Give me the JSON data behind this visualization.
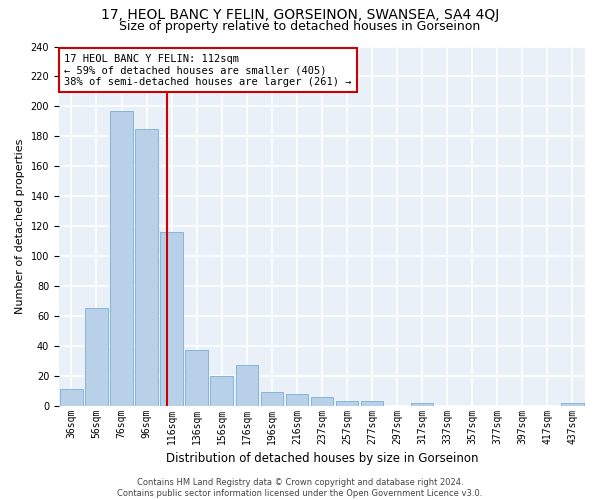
{
  "title": "17, HEOL BANC Y FELIN, GORSEINON, SWANSEA, SA4 4QJ",
  "subtitle": "Size of property relative to detached houses in Gorseinon",
  "xlabel": "Distribution of detached houses by size in Gorseinon",
  "ylabel": "Number of detached properties",
  "bar_color": "#b8d0e8",
  "bar_edge_color": "#7aaed4",
  "background_color": "#eaf0f8",
  "grid_color": "#ffffff",
  "categories": [
    "36sqm",
    "56sqm",
    "76sqm",
    "96sqm",
    "116sqm",
    "136sqm",
    "156sqm",
    "176sqm",
    "196sqm",
    "216sqm",
    "237sqm",
    "257sqm",
    "277sqm",
    "297sqm",
    "317sqm",
    "337sqm",
    "357sqm",
    "377sqm",
    "397sqm",
    "417sqm",
    "437sqm"
  ],
  "values": [
    11,
    65,
    197,
    185,
    116,
    37,
    20,
    27,
    9,
    8,
    6,
    3,
    3,
    0,
    2,
    0,
    0,
    0,
    0,
    0,
    2
  ],
  "property_line_x": 3.82,
  "property_line_color": "#cc0000",
  "annotation_line1": "17 HEOL BANC Y FELIN: 112sqm",
  "annotation_line2": "← 59% of detached houses are smaller (405)",
  "annotation_line3": "38% of semi-detached houses are larger (261) →",
  "annotation_box_color": "#ffffff",
  "annotation_box_edge_color": "#cc0000",
  "ylim": [
    0,
    240
  ],
  "yticks": [
    0,
    20,
    40,
    60,
    80,
    100,
    120,
    140,
    160,
    180,
    200,
    220,
    240
  ],
  "footnote": "Contains HM Land Registry data © Crown copyright and database right 2024.\nContains public sector information licensed under the Open Government Licence v3.0.",
  "title_fontsize": 10,
  "subtitle_fontsize": 9,
  "xlabel_fontsize": 8.5,
  "ylabel_fontsize": 8,
  "tick_fontsize": 7,
  "annotation_fontsize": 7.5,
  "footnote_fontsize": 6
}
